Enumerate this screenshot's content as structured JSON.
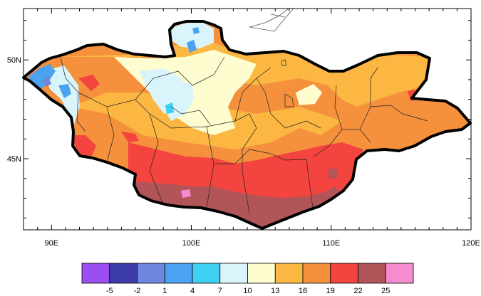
{
  "map": {
    "lon_range": [
      88,
      120
    ],
    "lat_range": [
      41.4,
      52.6
    ],
    "x_ticks": [
      {
        "lon": 90,
        "label": "90E"
      },
      {
        "lon": 100,
        "label": "100E"
      },
      {
        "lon": 110,
        "label": "110E"
      },
      {
        "lon": 120,
        "label": "120E"
      }
    ],
    "y_ticks": [
      {
        "lat": 50,
        "label": "50N"
      },
      {
        "lat": 45,
        "label": "45N"
      }
    ]
  },
  "colorbar": {
    "colors": [
      "#9b4ff0",
      "#3c3ca8",
      "#6f86dd",
      "#4aa2f0",
      "#3fcff3",
      "#d9f4fb",
      "#fefdd0",
      "#fbb742",
      "#f5913d",
      "#f3443f",
      "#b25559",
      "#f58bd0"
    ],
    "labels": [
      "-5",
      "-2",
      "1",
      "4",
      "7",
      "10",
      "13",
      "16",
      "19",
      "22",
      "25"
    ]
  },
  "colors": {
    "border": "#000000",
    "province": "#222222"
  }
}
